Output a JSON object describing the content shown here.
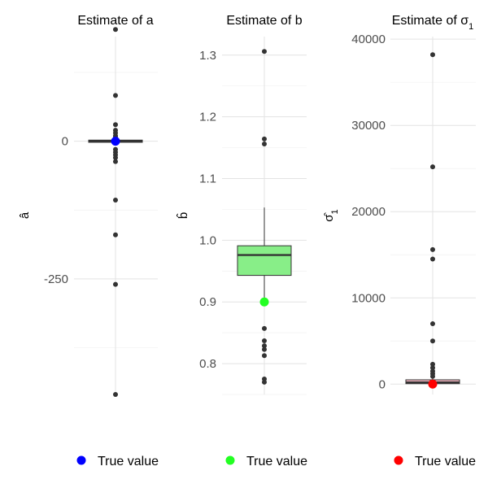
{
  "chart_data": [
    {
      "type": "boxplot",
      "title": "Estimate of a",
      "ylabel": "â",
      "ylim": [
        -460,
        190
      ],
      "yticks": [
        {
          "value": 0,
          "label": "0"
        },
        {
          "value": -250,
          "label": "-250"
        }
      ],
      "minor_gridlines": [
        125,
        -125,
        -375
      ],
      "box": {
        "q1": -2,
        "median": 0,
        "q3": 2,
        "whisker_low": -6,
        "whisker_high": 6,
        "fill": "#ff0000"
      },
      "outliers": [
        203,
        83,
        30,
        20,
        15,
        10,
        8,
        -15,
        -20,
        -25,
        -30,
        -37,
        -107,
        -170,
        -260,
        -460
      ],
      "true_value": {
        "value": 0,
        "color": "#0000ff",
        "label": "True value"
      }
    },
    {
      "type": "boxplot",
      "title": "Estimate of b",
      "ylabel": "b̂",
      "ylim": [
        0.75,
        1.33
      ],
      "yticks": [
        {
          "value": 1.3,
          "label": "1.3"
        },
        {
          "value": 1.2,
          "label": "1.2"
        },
        {
          "value": 1.1,
          "label": "1.1"
        },
        {
          "value": 1.0,
          "label": "1.0"
        },
        {
          "value": 0.9,
          "label": "0.9"
        },
        {
          "value": 0.8,
          "label": "0.8"
        }
      ],
      "minor_gridlines": [
        1.25,
        1.15,
        1.05,
        0.95,
        0.85,
        0.75
      ],
      "box": {
        "q1": 0.943,
        "median": 0.976,
        "q3": 0.991,
        "whisker_low": 0.9,
        "whisker_high": 1.053,
        "fill": "#88ee88"
      },
      "outliers": [
        1.306,
        1.164,
        1.156,
        0.857,
        0.837,
        0.829,
        0.823,
        0.813,
        0.775,
        0.77
      ],
      "true_value": {
        "value": 0.9,
        "color": "#22ff22",
        "label": "True value"
      }
    },
    {
      "type": "boxplot",
      "title": "Estimate of σ",
      "title_sub": "1",
      "ylabel": "σ̂",
      "ylabel_sub": "1",
      "ylim": [
        -1200,
        40300
      ],
      "yticks": [
        {
          "value": 40000,
          "label": "40000"
        },
        {
          "value": 30000,
          "label": "30000"
        },
        {
          "value": 20000,
          "label": "20000"
        },
        {
          "value": 10000,
          "label": "10000"
        },
        {
          "value": 0,
          "label": "0"
        }
      ],
      "minor_gridlines": [
        35000,
        25000,
        15000,
        5000
      ],
      "box": {
        "q1": 50,
        "median": 200,
        "q3": 500,
        "whisker_low": 0,
        "whisker_high": 800,
        "fill": "#f4b6c2"
      },
      "outliers": [
        38200,
        25200,
        15600,
        14500,
        7000,
        5000,
        2300,
        1900,
        1500,
        1200,
        900
      ],
      "true_value": {
        "value": 0,
        "color": "#ff0000",
        "label": "True value"
      }
    }
  ]
}
